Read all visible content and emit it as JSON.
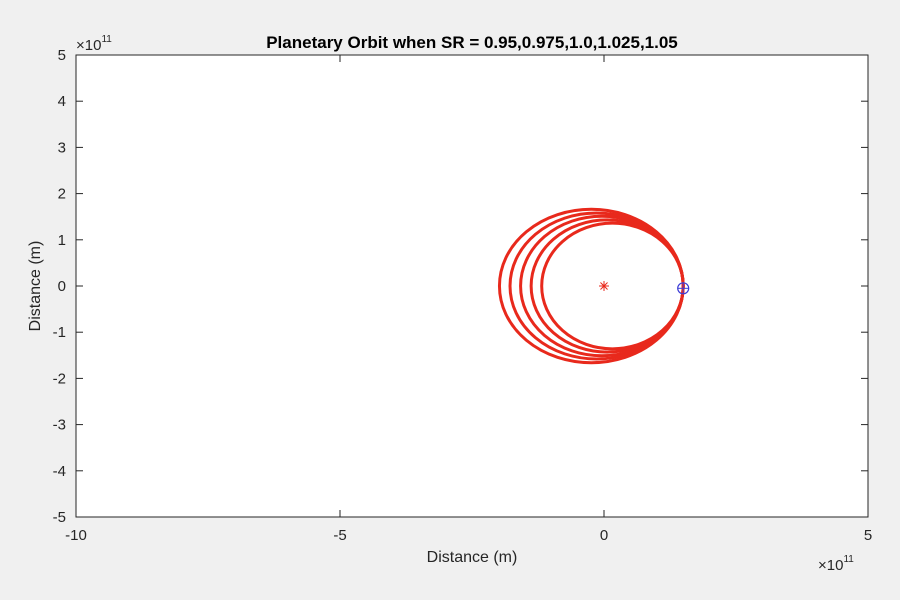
{
  "chart_data": {
    "type": "line",
    "title": "Planetary Orbit when SR = 0.95,0.975,1.0,1.025,1.05",
    "xlabel": "Distance (m)",
    "ylabel": "Distance (m)",
    "xlim": [
      -10,
      5
    ],
    "ylim": [
      -5,
      5
    ],
    "axis_scale_exponent": {
      "x": {
        "multiplier": "×10",
        "power": "11"
      },
      "y": {
        "multiplier": "×10",
        "power": "11"
      }
    },
    "x_ticks": [
      -10,
      -5,
      0,
      5
    ],
    "x_tick_labels": [
      "-10",
      "-5",
      "0",
      "5"
    ],
    "y_ticks": [
      -5,
      -4,
      -3,
      -2,
      -1,
      0,
      1,
      2,
      3,
      4,
      5
    ],
    "y_tick_labels": [
      "-5",
      "-4",
      "-3",
      "-2",
      "-1",
      "0",
      "1",
      "2",
      "3",
      "4",
      "5"
    ],
    "grid": false,
    "series": [
      {
        "orbit": {
          "perihelion_x": 1.5,
          "aphelion_x": -1.18,
          "semi_minor": 1.36
        },
        "color": "#e8291c"
      },
      {
        "orbit": {
          "perihelion_x": 1.5,
          "aphelion_x": -1.38,
          "semi_minor": 1.43
        },
        "color": "#e8291c"
      },
      {
        "orbit": {
          "perihelion_x": 1.5,
          "aphelion_x": -1.58,
          "semi_minor": 1.51
        },
        "color": "#e8291c"
      },
      {
        "orbit": {
          "perihelion_x": 1.5,
          "aphelion_x": -1.78,
          "semi_minor": 1.58
        },
        "color": "#e8291c"
      },
      {
        "orbit": {
          "perihelion_x": 1.5,
          "aphelion_x": -1.98,
          "semi_minor": 1.66
        },
        "color": "#e8291c"
      }
    ],
    "markers": [
      {
        "kind": "asterisk",
        "x": 0,
        "y": 0,
        "color": "#e8291c"
      },
      {
        "kind": "circle-plus",
        "x": 1.5,
        "y": -0.05,
        "color": "#3b3bd6"
      }
    ]
  }
}
